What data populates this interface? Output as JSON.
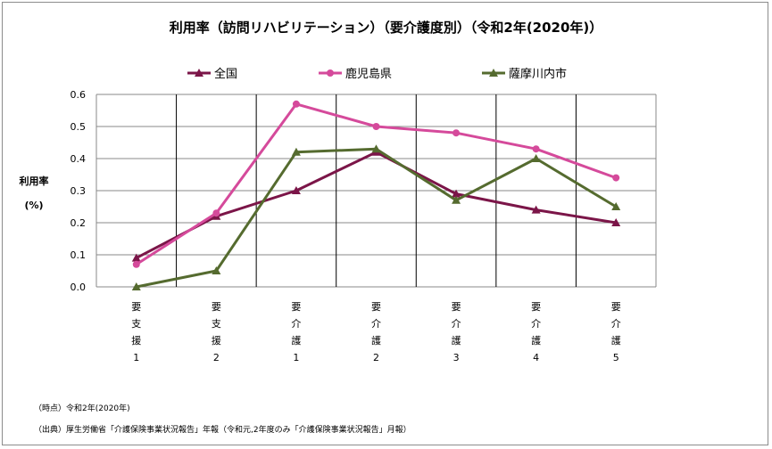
{
  "chart_data": {
    "type": "line",
    "title": "利用率（訪問リハビリテーション）（要介護度別）（令和2年(2020年)）",
    "ylabel_lines": [
      "利用率",
      "(%)"
    ],
    "categories": [
      [
        "要",
        "支",
        "援",
        "1"
      ],
      [
        "要",
        "支",
        "援",
        "2"
      ],
      [
        "要",
        "介",
        "護",
        "1"
      ],
      [
        "要",
        "介",
        "護",
        "2"
      ],
      [
        "要",
        "介",
        "護",
        "3"
      ],
      [
        "要",
        "介",
        "護",
        "4"
      ],
      [
        "要",
        "介",
        "護",
        "5"
      ]
    ],
    "ylim": [
      0,
      0.6
    ],
    "yticks": [
      "0.0",
      "0.1",
      "0.2",
      "0.3",
      "0.4",
      "0.5",
      "0.6"
    ],
    "grid": true,
    "legend_position": "top",
    "series": [
      {
        "name": "全国",
        "color": "#7b1548",
        "marker": "triangle",
        "values": [
          0.09,
          0.22,
          0.3,
          0.42,
          0.29,
          0.24,
          0.2
        ]
      },
      {
        "name": "鹿児島県",
        "color": "#d54a9b",
        "marker": "circle",
        "values": [
          0.07,
          0.23,
          0.57,
          0.5,
          0.48,
          0.43,
          0.34
        ]
      },
      {
        "name": "薩摩川内市",
        "color": "#556b2f",
        "marker": "triangle",
        "values": [
          0.0,
          0.05,
          0.42,
          0.43,
          0.27,
          0.4,
          0.25
        ]
      }
    ]
  },
  "notes": [
    "（時点）令和2年(2020年)",
    "（出典）厚生労働省「介護保険事業状況報告」年報（令和元,2年度のみ「介護保険事業状況報告」月報）"
  ]
}
